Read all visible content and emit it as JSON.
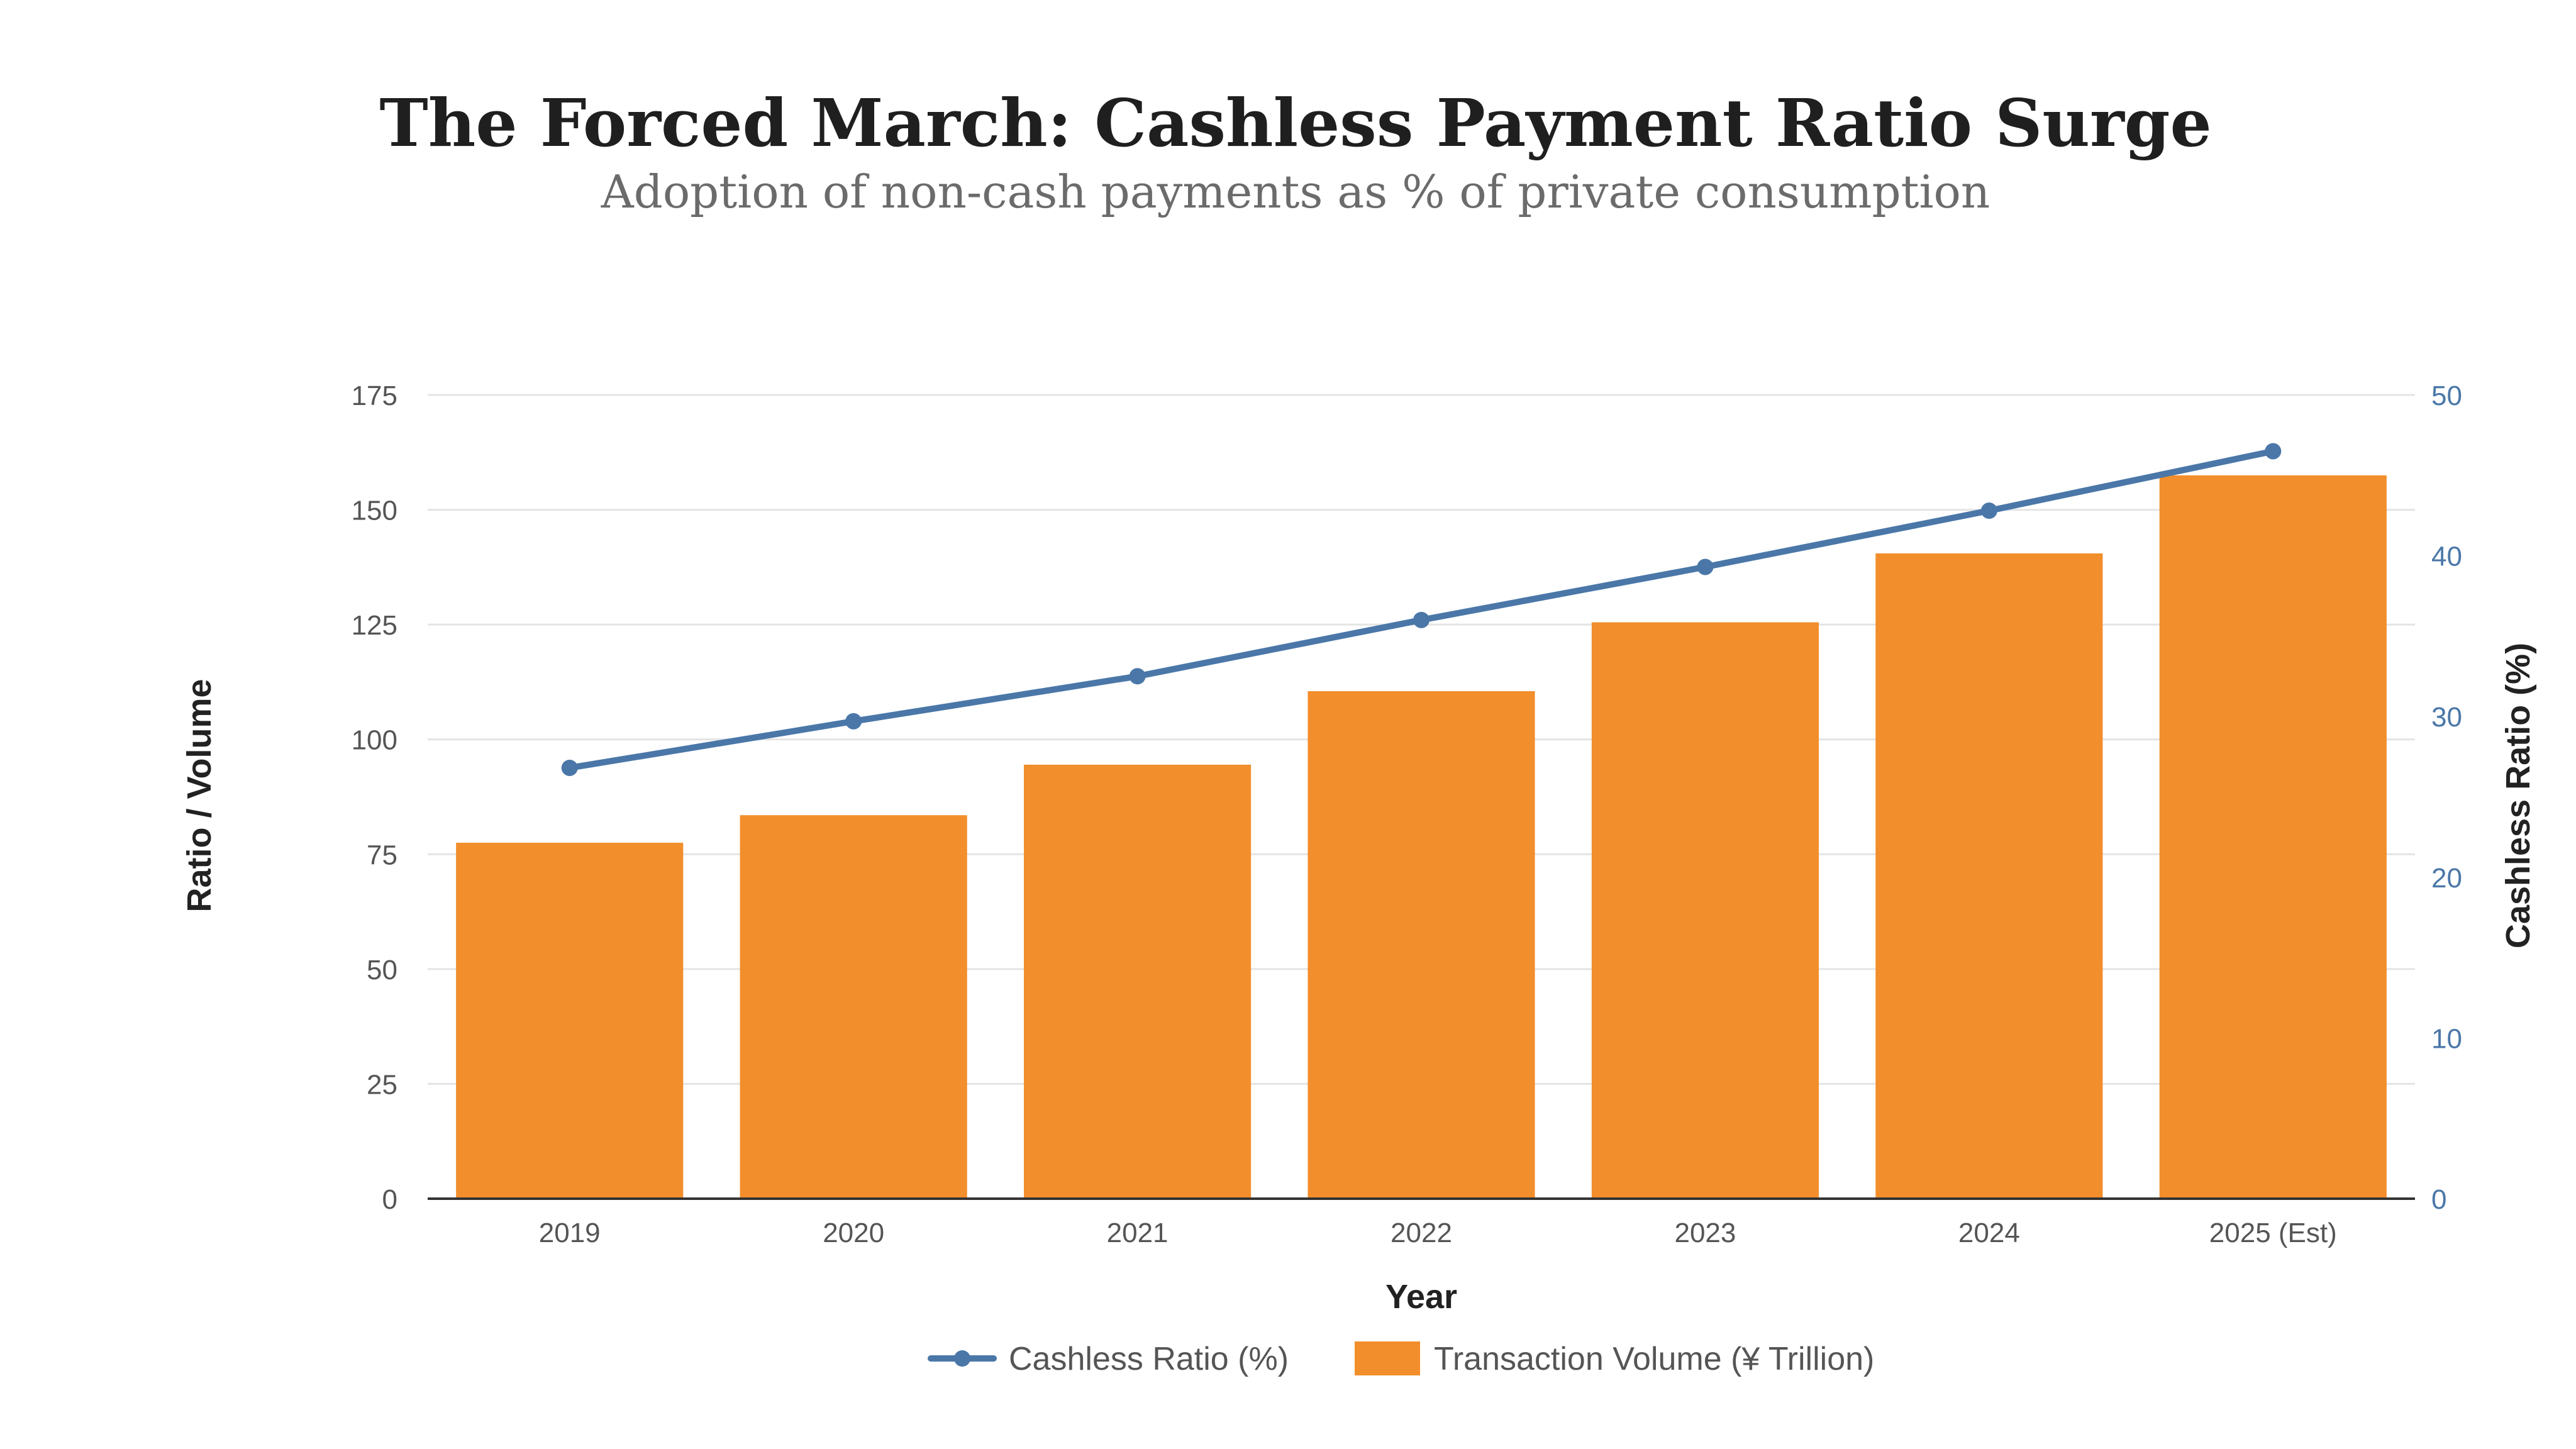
{
  "chart_data": {
    "type": "bar",
    "title": "The Forced March: Cashless Payment Ratio Surge",
    "subtitle": "Adoption of non-cash payments as % of private consumption",
    "xlabel": "Year",
    "ylabel": "Ratio / Volume",
    "ylabel_right": "Cashless Ratio (%)",
    "categories": [
      "2019",
      "2020",
      "2021",
      "2022",
      "2023",
      "2024",
      "2025 (Est)"
    ],
    "ylim": [
      0,
      175
    ],
    "yticks": [
      "0",
      "25",
      "50",
      "75",
      "100",
      "125",
      "150",
      "175"
    ],
    "ylim_right": [
      0,
      50
    ],
    "yticks_right": [
      "0",
      "10",
      "20",
      "30",
      "40",
      "50"
    ],
    "grid": true,
    "legend_position": "bottom-center",
    "series": [
      {
        "name": "Cashless Ratio (%)",
        "type": "line",
        "axis": "right",
        "color": "#4a77a8",
        "values": [
          26.8,
          29.7,
          32.5,
          36.0,
          39.3,
          42.8,
          46.5
        ]
      },
      {
        "name": "Transaction Volume (¥ Trillion)",
        "type": "bar",
        "axis": "left",
        "color": "#f28e2b",
        "values": [
          77.5,
          83.5,
          94.5,
          110.5,
          125.5,
          140.5,
          157.5
        ]
      }
    ]
  }
}
